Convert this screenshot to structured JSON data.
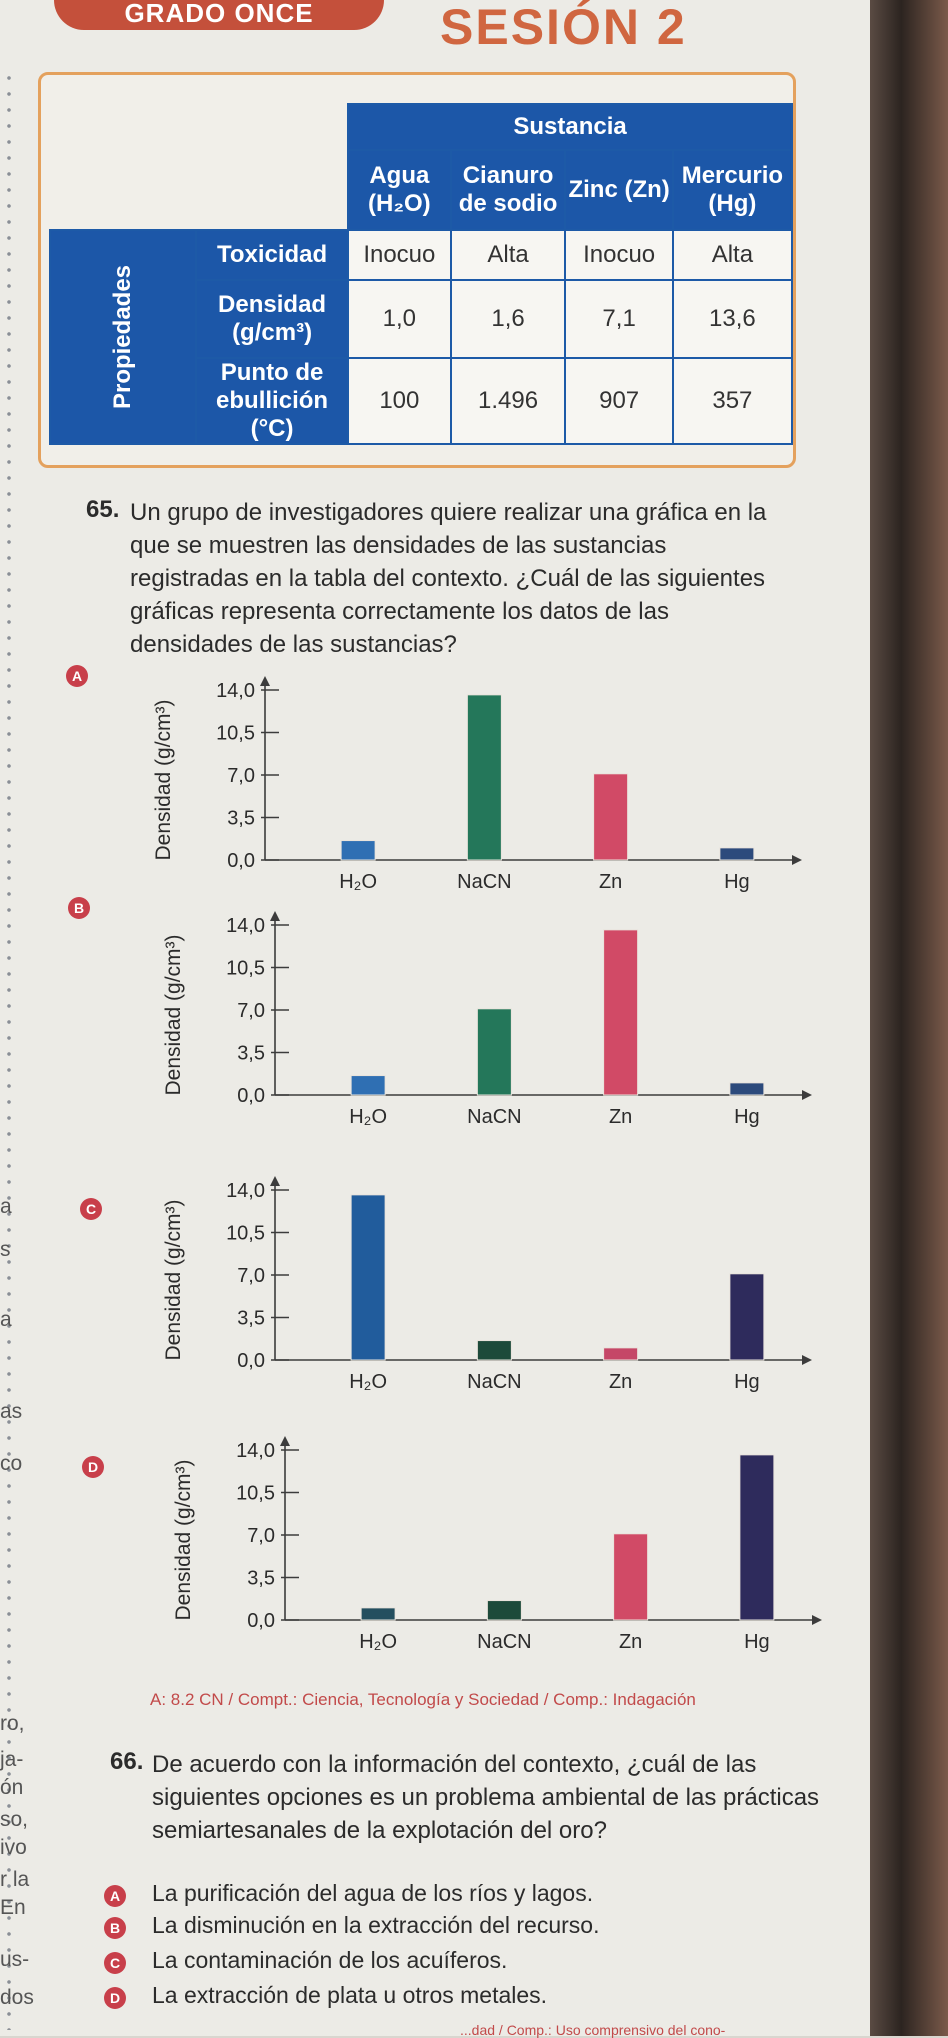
{
  "header": {
    "grade": "GRADO ONCE",
    "session": "SESIÓN 2"
  },
  "table": {
    "header_group": "Sustancia",
    "row_group": "Propiedades",
    "columns": [
      "Agua (H₂O)",
      "Cianuro de sodio",
      "Zinc (Zn)",
      "Mercurio (Hg)"
    ],
    "rows": [
      {
        "label": "Toxicidad",
        "values": [
          "Inocuo",
          "Alta",
          "Inocuo",
          "Alta"
        ]
      },
      {
        "label": "Densidad (g/cm³)",
        "values": [
          "1,0",
          "1,6",
          "7,1",
          "13,6"
        ]
      },
      {
        "label": "Punto de ebullición (°C)",
        "values": [
          "100",
          "1.496",
          "907",
          "357"
        ]
      }
    ]
  },
  "question65": {
    "number": "65.",
    "text": "Un grupo de investigadores quiere realizar una gráfica en la que se muestren las densidades de las sustancias registradas en la tabla del contexto. ¿Cuál de las siguientes gráficas representa correctamente los datos de las densidades de las sustancias?"
  },
  "chart_data": [
    {
      "option": "A",
      "type": "bar",
      "ylabel": "Densidad (g/cm³)",
      "yticks": [
        "0,0",
        "3,5",
        "7,0",
        "10,5",
        "14,0"
      ],
      "ylim": [
        0,
        14
      ],
      "categories": [
        "H₂O",
        "NaCN",
        "Zn",
        "Hg"
      ],
      "values": [
        1.6,
        13.6,
        7.1,
        1.0
      ],
      "colors": [
        "#2f6fb3",
        "#24775a",
        "#d14a66",
        "#2c4a7c"
      ]
    },
    {
      "option": "B",
      "type": "bar",
      "ylabel": "Densidad (g/cm³)",
      "yticks": [
        "0,0",
        "3,5",
        "7,0",
        "10,5",
        "14,0"
      ],
      "ylim": [
        0,
        14
      ],
      "categories": [
        "H₂O",
        "NaCN",
        "Zn",
        "Hg"
      ],
      "values": [
        1.6,
        7.1,
        13.6,
        1.0
      ],
      "colors": [
        "#2f6fb3",
        "#24775a",
        "#d14a66",
        "#2c4a7c"
      ]
    },
    {
      "option": "C",
      "type": "bar",
      "ylabel": "Densidad (g/cm³)",
      "yticks": [
        "0,0",
        "3,5",
        "7,0",
        "10,5",
        "14,0"
      ],
      "ylim": [
        0,
        14
      ],
      "categories": [
        "H₂O",
        "NaCN",
        "Zn",
        "Hg"
      ],
      "values": [
        13.6,
        1.6,
        1.0,
        7.1
      ],
      "colors": [
        "#215c9c",
        "#1d4a3a",
        "#c54767",
        "#2e2b5c"
      ]
    },
    {
      "option": "D",
      "type": "bar",
      "ylabel": "Densidad (g/cm³)",
      "yticks": [
        "0,0",
        "3,5",
        "7,0",
        "10,5",
        "14,0"
      ],
      "ylim": [
        0,
        14
      ],
      "categories": [
        "H₂O",
        "NaCN",
        "Zn",
        "Hg"
      ],
      "values": [
        1.0,
        1.6,
        7.1,
        13.6
      ],
      "colors": [
        "#244f5f",
        "#1d4a3a",
        "#d14a66",
        "#2e2b5c"
      ]
    }
  ],
  "reference": "A: 8.2 CN / Compt.: Ciencia, Tecnología y Sociedad / Comp.: Indagación",
  "question66": {
    "number": "66.",
    "text": "De acuerdo con la información del contexto, ¿cuál de las siguientes opciones es un problema ambiental de las prácticas semiartesanales de la explotación del oro?",
    "options": [
      {
        "letter": "A",
        "text": "La purificación del agua de los ríos y lagos."
      },
      {
        "letter": "B",
        "text": "La disminución en la extracción del recurso."
      },
      {
        "letter": "C",
        "text": "La contaminación de los acuíferos."
      },
      {
        "letter": "D",
        "text": "La extracción de plata u otros metales."
      }
    ]
  },
  "margin_words": [
    "a",
    "s",
    "a",
    "as",
    "co",
    "ro,",
    "ja-",
    "ón",
    "so,",
    "ivo",
    "r la",
    "En",
    "us-",
    "dos"
  ],
  "footer": "...dad / Comp.: Uso comprensivo del cono-"
}
